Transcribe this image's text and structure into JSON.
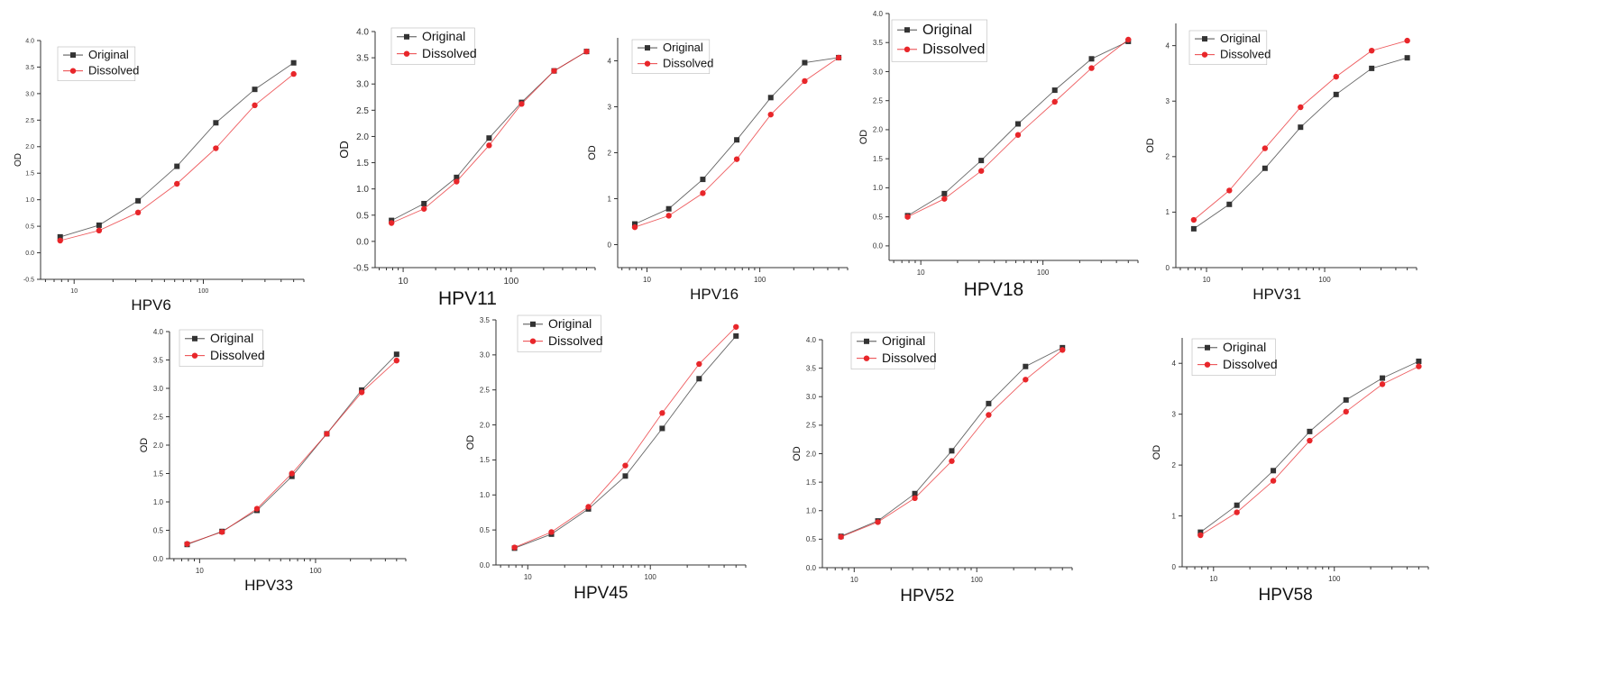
{
  "chart_data": [
    {
      "type": "line",
      "title": "HPV6",
      "ylabel": "OD",
      "xscale": "log",
      "ylim": [
        -0.5,
        4.0
      ],
      "yticks": [
        "-0.5",
        "0.0",
        "0.5",
        "1.0",
        "1.5",
        "2.0",
        "2.5",
        "3.0",
        "3.5",
        "4.0"
      ],
      "xticks": [
        "10",
        "100"
      ],
      "series": [
        {
          "name": "Original",
          "color": "#333333",
          "marker": "square",
          "x": [
            7.8,
            15.6,
            31.25,
            62.5,
            125,
            250,
            500
          ],
          "y": [
            0.3,
            0.52,
            0.98,
            1.63,
            2.45,
            3.08,
            3.58
          ]
        },
        {
          "name": "Dissolved",
          "color": "#e8262a",
          "marker": "circle",
          "x": [
            7.8,
            15.6,
            31.25,
            62.5,
            125,
            250,
            500
          ],
          "y": [
            0.23,
            0.42,
            0.76,
            1.3,
            1.97,
            2.78,
            3.37
          ]
        }
      ]
    },
    {
      "type": "line",
      "title": "HPV11",
      "ylabel": "OD",
      "xscale": "log",
      "ylim": [
        -0.5,
        4.0
      ],
      "yticks": [
        "-0.5",
        "0.0",
        "0.5",
        "1.0",
        "1.5",
        "2.0",
        "2.5",
        "3.0",
        "3.5",
        "4.0"
      ],
      "xticks": [
        "10",
        "100"
      ],
      "series": [
        {
          "name": "Original",
          "color": "#333333",
          "marker": "square",
          "x": [
            7.8,
            15.6,
            31.25,
            62.5,
            125,
            250,
            500
          ],
          "y": [
            0.4,
            0.72,
            1.22,
            1.97,
            2.65,
            3.25,
            3.62
          ]
        },
        {
          "name": "Dissolved",
          "color": "#e8262a",
          "marker": "circle",
          "x": [
            7.8,
            15.6,
            31.25,
            62.5,
            125,
            250,
            500
          ],
          "y": [
            0.35,
            0.62,
            1.14,
            1.83,
            2.62,
            3.25,
            3.62
          ]
        }
      ]
    },
    {
      "type": "line",
      "title": "HPV16",
      "ylabel": "OD",
      "xscale": "log",
      "ylim": [
        -0.5,
        4.5
      ],
      "yticks": [
        "0",
        "1",
        "2",
        "3",
        "4"
      ],
      "xticks": [
        "10",
        "100"
      ],
      "series": [
        {
          "name": "Original",
          "color": "#333333",
          "marker": "square",
          "x": [
            7.8,
            15.6,
            31.25,
            62.5,
            125,
            250,
            500
          ],
          "y": [
            0.45,
            0.78,
            1.42,
            2.28,
            3.2,
            3.96,
            4.07
          ]
        },
        {
          "name": "Dissolved",
          "color": "#e8262a",
          "marker": "circle",
          "x": [
            7.8,
            15.6,
            31.25,
            62.5,
            125,
            250,
            500
          ],
          "y": [
            0.38,
            0.63,
            1.12,
            1.86,
            2.83,
            3.56,
            4.07
          ]
        }
      ]
    },
    {
      "type": "line",
      "title": "HPV18",
      "ylabel": "OD",
      "xscale": "log",
      "ylim": [
        -0.25,
        4.0
      ],
      "yticks": [
        "0.0",
        "0.5",
        "1.0",
        "1.5",
        "2.0",
        "2.5",
        "3.0",
        "3.5",
        "4.0"
      ],
      "xticks": [
        "10",
        "100"
      ],
      "series": [
        {
          "name": "Original",
          "color": "#333333",
          "marker": "square",
          "x": [
            7.8,
            15.6,
            31.25,
            62.5,
            125,
            250,
            500
          ],
          "y": [
            0.52,
            0.9,
            1.47,
            2.1,
            2.68,
            3.22,
            3.52
          ]
        },
        {
          "name": "Dissolved",
          "color": "#e8262a",
          "marker": "circle",
          "x": [
            7.8,
            15.6,
            31.25,
            62.5,
            125,
            250,
            500
          ],
          "y": [
            0.5,
            0.81,
            1.29,
            1.91,
            2.48,
            3.06,
            3.55
          ]
        }
      ]
    },
    {
      "type": "line",
      "title": "HPV31",
      "ylabel": "OD",
      "xscale": "log",
      "ylim": [
        0,
        4.4
      ],
      "yticks": [
        "0",
        "1",
        "2",
        "3",
        "4"
      ],
      "xticks": [
        "10",
        "100"
      ],
      "series": [
        {
          "name": "Original",
          "color": "#333333",
          "marker": "square",
          "x": [
            7.8,
            15.6,
            31.25,
            62.5,
            125,
            250,
            500
          ],
          "y": [
            0.7,
            1.14,
            1.79,
            2.53,
            3.12,
            3.59,
            3.78
          ]
        },
        {
          "name": "Dissolved",
          "color": "#e8262a",
          "marker": "circle",
          "x": [
            7.8,
            15.6,
            31.25,
            62.5,
            125,
            250,
            500
          ],
          "y": [
            0.86,
            1.39,
            2.15,
            2.89,
            3.44,
            3.91,
            4.09
          ]
        }
      ]
    },
    {
      "type": "line",
      "title": "HPV33",
      "ylabel": "OD",
      "xscale": "log",
      "ylim": [
        0,
        4.0
      ],
      "yticks": [
        "0.0",
        "0.5",
        "1.0",
        "1.5",
        "2.0",
        "2.5",
        "3.0",
        "3.5",
        "4.0"
      ],
      "xticks": [
        "10",
        "100"
      ],
      "series": [
        {
          "name": "Original",
          "color": "#333333",
          "marker": "square",
          "x": [
            7.8,
            15.6,
            31.25,
            62.5,
            125,
            250,
            500
          ],
          "y": [
            0.25,
            0.48,
            0.85,
            1.45,
            2.2,
            2.97,
            3.6
          ]
        },
        {
          "name": "Dissolved",
          "color": "#e8262a",
          "marker": "circle",
          "x": [
            7.8,
            15.6,
            31.25,
            62.5,
            125,
            250,
            500
          ],
          "y": [
            0.26,
            0.47,
            0.88,
            1.5,
            2.2,
            2.93,
            3.49
          ]
        }
      ]
    },
    {
      "type": "line",
      "title": "HPV45",
      "ylabel": "OD",
      "xscale": "log",
      "ylim": [
        0,
        3.5
      ],
      "yticks": [
        "0.0",
        "0.5",
        "1.0",
        "1.5",
        "2.0",
        "2.5",
        "3.0",
        "3.5"
      ],
      "xticks": [
        "10",
        "100"
      ],
      "series": [
        {
          "name": "Original",
          "color": "#333333",
          "marker": "square",
          "x": [
            7.8,
            15.6,
            31.25,
            62.5,
            125,
            250,
            500
          ],
          "y": [
            0.24,
            0.44,
            0.8,
            1.27,
            1.95,
            2.66,
            3.27
          ]
        },
        {
          "name": "Dissolved",
          "color": "#e8262a",
          "marker": "circle",
          "x": [
            7.8,
            15.6,
            31.25,
            62.5,
            125,
            250,
            500
          ],
          "y": [
            0.25,
            0.47,
            0.83,
            1.42,
            2.17,
            2.87,
            3.4
          ]
        }
      ]
    },
    {
      "type": "line",
      "title": "HPV52",
      "ylabel": "OD",
      "xscale": "log",
      "ylim": [
        0,
        4.0
      ],
      "yticks": [
        "0.0",
        "0.5",
        "1.0",
        "1.5",
        "2.0",
        "2.5",
        "3.0",
        "3.5",
        "4.0"
      ],
      "xticks": [
        "10",
        "100"
      ],
      "series": [
        {
          "name": "Original",
          "color": "#333333",
          "marker": "square",
          "x": [
            7.8,
            15.6,
            31.25,
            62.5,
            125,
            250,
            500
          ],
          "y": [
            0.55,
            0.82,
            1.3,
            2.05,
            2.88,
            3.53,
            3.86
          ]
        },
        {
          "name": "Dissolved",
          "color": "#e8262a",
          "marker": "circle",
          "x": [
            7.8,
            15.6,
            31.25,
            62.5,
            125,
            250,
            500
          ],
          "y": [
            0.54,
            0.8,
            1.22,
            1.87,
            2.68,
            3.3,
            3.82
          ]
        }
      ]
    },
    {
      "type": "line",
      "title": "HPV58",
      "ylabel": "OD",
      "xscale": "log",
      "ylim": [
        0,
        4.5
      ],
      "yticks": [
        "0",
        "1",
        "2",
        "3",
        "4"
      ],
      "xticks": [
        "10",
        "100"
      ],
      "series": [
        {
          "name": "Original",
          "color": "#333333",
          "marker": "square",
          "x": [
            7.8,
            15.6,
            31.25,
            62.5,
            125,
            250,
            500
          ],
          "y": [
            0.68,
            1.21,
            1.89,
            2.66,
            3.28,
            3.71,
            4.04
          ]
        },
        {
          "name": "Dissolved",
          "color": "#e8262a",
          "marker": "circle",
          "x": [
            7.8,
            15.6,
            31.25,
            62.5,
            125,
            250,
            500
          ],
          "y": [
            0.62,
            1.07,
            1.69,
            2.48,
            3.05,
            3.59,
            3.94
          ]
        }
      ]
    }
  ]
}
